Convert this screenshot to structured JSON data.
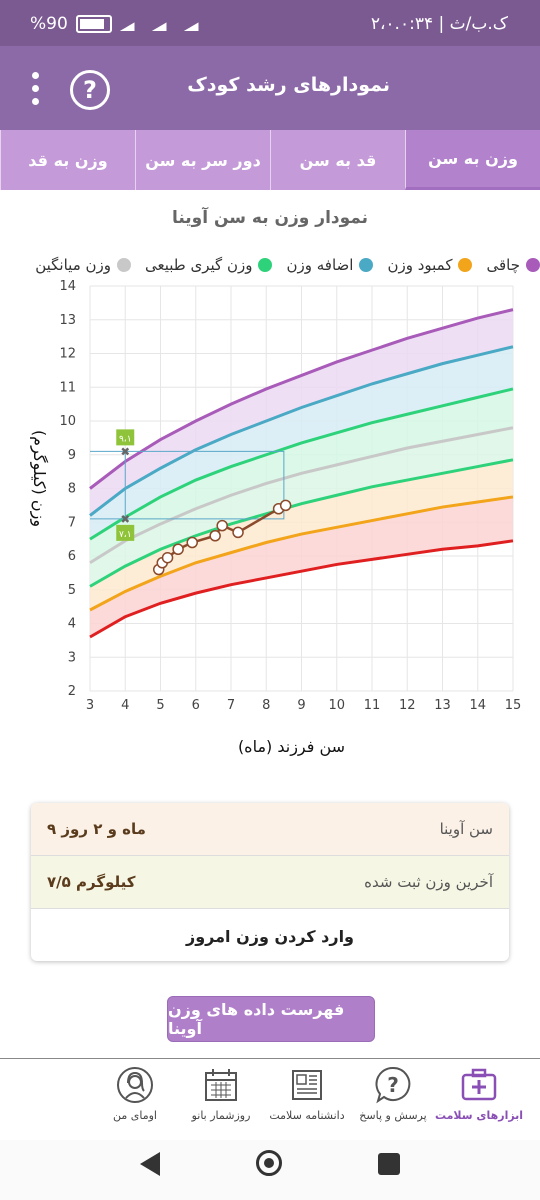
{
  "status_bar": {
    "time": "۰:۳۴",
    "date": "۲،۰.ک.ب/ث",
    "battery": "%90"
  },
  "app_bar": {
    "title": "نمودارهای رشد کودک",
    "help_icon": "help-circle-icon",
    "menu_icon": "more-vert-icon"
  },
  "tabs": [
    {
      "label": "وزن به سن",
      "active": true
    },
    {
      "label": "قد به سن",
      "active": false
    },
    {
      "label": "دور سر به سن",
      "active": false
    },
    {
      "label": "وزن به قد",
      "active": false
    }
  ],
  "colors": {
    "purple": "#a85bb8",
    "blue": "#4aa9c4",
    "green": "#2ed27a",
    "grey": "#c8c8c8",
    "orange": "#f2a41a",
    "red": "#e02020",
    "measure": "#8b4a2b"
  },
  "legend": [
    {
      "label": "چاقی",
      "color": "#a85bb8"
    },
    {
      "label": "کمبود وزن",
      "color": "#f2a41a"
    },
    {
      "label": "اضافه وزن",
      "color": "#4aa9c4"
    },
    {
      "label": "وزن گیری طبیعی",
      "color": "#2ed27a"
    },
    {
      "label": "وزن میانگین",
      "color": "#c8c8c8"
    }
  ],
  "chart_data": {
    "type": "line",
    "title": "نمودار وزن به سن آوینا",
    "xlabel": "سن فرزند (ماه)",
    "ylabel": "وزن (کیلوگرم)",
    "xlim": [
      3,
      15
    ],
    "ylim": [
      2,
      14
    ],
    "x_ticks": [
      "3",
      "4",
      "5",
      "6",
      "7",
      "8",
      "9",
      "10",
      "11",
      "12",
      "13",
      "14",
      "15"
    ],
    "y_ticks": [
      "2",
      "3",
      "4",
      "5",
      "6",
      "7",
      "8",
      "9",
      "10",
      "11",
      "12",
      "13",
      "14"
    ],
    "grid": true,
    "series": [
      {
        "name": "چاقی",
        "x": [
          3,
          4,
          5,
          6,
          7,
          8,
          9,
          10,
          11,
          12,
          13,
          14,
          15
        ],
        "values": [
          8.0,
          8.8,
          9.45,
          10.0,
          10.5,
          10.95,
          11.35,
          11.75,
          12.1,
          12.45,
          12.75,
          13.05,
          13.3
        ]
      },
      {
        "name": "اضافه وزن",
        "x": [
          3,
          4,
          5,
          6,
          7,
          8,
          9,
          10,
          11,
          12,
          13,
          14,
          15
        ],
        "values": [
          7.2,
          8.0,
          8.6,
          9.15,
          9.6,
          10.0,
          10.4,
          10.75,
          11.1,
          11.4,
          11.7,
          11.95,
          12.2
        ]
      },
      {
        "name": "وزن گیری طبیعی",
        "x": [
          3,
          4,
          5,
          6,
          7,
          8,
          9,
          10,
          11,
          12,
          13,
          14,
          15
        ],
        "values": [
          6.5,
          7.15,
          7.75,
          8.25,
          8.65,
          9.0,
          9.35,
          9.65,
          9.95,
          10.2,
          10.45,
          10.7,
          10.95
        ]
      },
      {
        "name": "وزن میانگین",
        "x": [
          3,
          4,
          5,
          6,
          7,
          8,
          9,
          10,
          11,
          12,
          13,
          14,
          15
        ],
        "values": [
          5.8,
          6.45,
          6.95,
          7.4,
          7.8,
          8.15,
          8.45,
          8.7,
          8.95,
          9.2,
          9.4,
          9.6,
          9.8
        ]
      },
      {
        "name": "",
        "x": [
          3,
          4,
          5,
          6,
          7,
          8,
          9,
          10,
          11,
          12,
          13,
          14,
          15
        ],
        "values": [
          5.1,
          5.7,
          6.2,
          6.6,
          6.95,
          7.25,
          7.55,
          7.8,
          8.05,
          8.25,
          8.45,
          8.65,
          8.85
        ]
      },
      {
        "name": "کمبود وزن",
        "x": [
          3,
          4,
          5,
          6,
          7,
          8,
          9,
          10,
          11,
          12,
          13,
          14,
          15
        ],
        "values": [
          4.4,
          4.95,
          5.4,
          5.8,
          6.1,
          6.4,
          6.65,
          6.85,
          7.05,
          7.25,
          7.45,
          7.6,
          7.75
        ]
      },
      {
        "name": "",
        "x": [
          3,
          4,
          5,
          6,
          7,
          8,
          9,
          10,
          11,
          12,
          13,
          14,
          15
        ],
        "values": [
          3.6,
          4.2,
          4.6,
          4.9,
          5.15,
          5.35,
          5.55,
          5.75,
          5.9,
          6.05,
          6.2,
          6.3,
          6.45
        ]
      }
    ],
    "measurements": {
      "x": [
        4.95,
        5.05,
        5.2,
        5.5,
        5.9,
        6.55,
        6.75,
        7.2,
        8.35,
        8.55
      ],
      "values": [
        5.6,
        5.8,
        5.95,
        6.2,
        6.4,
        6.6,
        6.9,
        6.7,
        7.4,
        7.5
      ]
    },
    "markers": [
      {
        "x": 4,
        "y": 9.1,
        "label": "۹،۱"
      },
      {
        "x": 4,
        "y": 7.1,
        "label": "۷،۱"
      }
    ],
    "highlight": {
      "x": [
        4,
        8.5
      ],
      "y": [
        7.1,
        9.1
      ]
    }
  },
  "info": {
    "age_label": "سن آوینا",
    "age_value": "۹ ماه و ۲ روز",
    "weight_label": "آخرین وزن ثبت شده",
    "weight_value": "۷/۵ کیلوگرم",
    "enter_weight": "وارد کردن وزن امروز"
  },
  "list_button": "فهرست داده های وزن آوینا",
  "bottom_nav": [
    {
      "label": "ابزارهای سلامت",
      "icon": "medical-kit-icon",
      "active": true
    },
    {
      "label": "پرسش و پاسخ",
      "icon": "question-bubble-icon",
      "active": false
    },
    {
      "label": "دانشنامه سلامت",
      "icon": "newspaper-icon",
      "active": false
    },
    {
      "label": "روزشمار بانو",
      "icon": "calendar-icon",
      "active": false
    },
    {
      "label": "اومای من",
      "icon": "woman-avatar-icon",
      "active": false
    }
  ]
}
